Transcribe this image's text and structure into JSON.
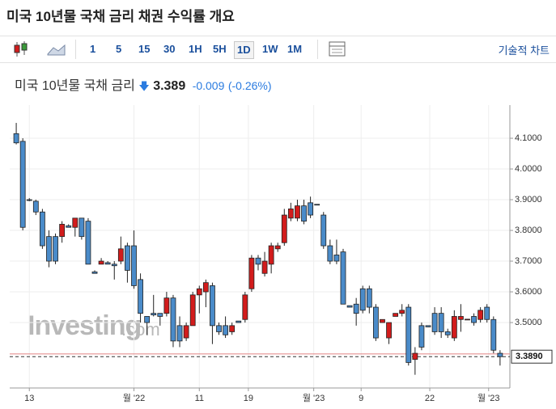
{
  "header": {
    "title": "미국 10년물 국채 금리  채권 수익률 개요"
  },
  "toolbar": {
    "intervals": [
      "1",
      "5",
      "15",
      "30",
      "1H",
      "5H",
      "1D",
      "1W",
      "1M"
    ],
    "selected": "1D",
    "technical": "기술적 차트"
  },
  "quote": {
    "name": "미국 10년물 국채 금리",
    "price": "3.389",
    "change": "-0.009",
    "change_pct": "(-0.26%)"
  },
  "chart_data": {
    "type": "candlestick",
    "up_color": "#d21c1c",
    "down_color": "#4a8bc9",
    "outline": "#222222",
    "watermark": [
      "Investing",
      ".com"
    ],
    "series": [
      {
        "open": [
          4.115,
          4.09,
          3.9,
          3.895,
          3.86,
          3.78,
          3.78,
          3.78,
          3.815,
          3.81,
          3.84,
          3.83,
          3.665,
          3.69,
          3.695,
          3.69,
          3.7,
          3.75,
          3.75,
          3.64,
          3.52,
          3.53,
          3.53,
          3.53,
          3.58,
          3.49,
          3.45,
          3.49,
          3.59,
          3.6,
          3.62,
          3.49,
          3.49,
          3.47,
          3.505,
          3.51,
          3.61,
          3.71,
          3.66,
          3.69,
          3.74,
          3.76,
          3.84,
          3.84,
          3.88,
          3.89,
          3.885,
          3.85,
          3.75,
          3.72,
          3.73,
          3.555,
          3.56,
          3.61,
          3.61,
          3.55,
          3.5,
          3.45,
          3.52,
          3.53,
          3.55,
          3.38,
          3.49,
          3.49,
          3.53,
          3.53,
          3.47,
          3.45,
          3.51,
          3.51,
          3.52,
          3.51,
          3.55,
          3.51,
          3.4
        ],
        "high": [
          4.15,
          4.1,
          3.905,
          3.9,
          3.87,
          3.8,
          3.79,
          3.83,
          3.82,
          3.84,
          3.84,
          3.84,
          3.67,
          3.71,
          3.7,
          3.7,
          3.78,
          3.76,
          3.8,
          3.66,
          3.52,
          3.59,
          3.53,
          3.6,
          3.59,
          3.52,
          3.5,
          3.6,
          3.62,
          3.64,
          3.63,
          3.5,
          3.52,
          3.5,
          3.505,
          3.6,
          3.72,
          3.72,
          3.73,
          3.76,
          3.76,
          3.87,
          3.89,
          3.9,
          3.9,
          3.91,
          3.885,
          3.86,
          3.77,
          3.77,
          3.74,
          3.555,
          3.58,
          3.62,
          3.62,
          3.56,
          3.51,
          3.5,
          3.53,
          3.56,
          3.56,
          3.42,
          3.5,
          3.49,
          3.55,
          3.55,
          3.48,
          3.54,
          3.56,
          3.51,
          3.53,
          3.55,
          3.56,
          3.52,
          3.41
        ],
        "low": [
          4.08,
          3.8,
          3.895,
          3.85,
          3.74,
          3.68,
          3.69,
          3.76,
          3.81,
          3.78,
          3.77,
          3.69,
          3.66,
          3.69,
          3.69,
          3.64,
          3.69,
          3.63,
          3.61,
          3.5,
          3.46,
          3.52,
          3.49,
          3.52,
          3.42,
          3.42,
          3.44,
          3.49,
          3.53,
          3.55,
          3.43,
          3.46,
          3.45,
          3.46,
          3.5,
          3.5,
          3.6,
          3.67,
          3.65,
          3.66,
          3.73,
          3.75,
          3.83,
          3.83,
          3.82,
          3.84,
          3.885,
          3.74,
          3.69,
          3.69,
          3.56,
          3.55,
          3.49,
          3.53,
          3.53,
          3.44,
          3.5,
          3.43,
          3.52,
          3.52,
          3.36,
          3.33,
          3.41,
          3.485,
          3.46,
          3.45,
          3.45,
          3.44,
          3.47,
          3.51,
          3.49,
          3.5,
          3.5,
          3.4,
          3.36
        ],
        "close": [
          4.085,
          3.81,
          3.899,
          3.86,
          3.75,
          3.7,
          3.7,
          3.82,
          3.81,
          3.84,
          3.78,
          3.69,
          3.66,
          3.7,
          3.69,
          3.685,
          3.74,
          3.67,
          3.62,
          3.53,
          3.5,
          3.525,
          3.52,
          3.58,
          3.44,
          3.44,
          3.49,
          3.59,
          3.61,
          3.63,
          3.49,
          3.47,
          3.46,
          3.49,
          3.5,
          3.59,
          3.71,
          3.69,
          3.7,
          3.75,
          3.75,
          3.85,
          3.87,
          3.88,
          3.83,
          3.85,
          3.884,
          3.75,
          3.7,
          3.7,
          3.56,
          3.55,
          3.53,
          3.54,
          3.55,
          3.45,
          3.51,
          3.5,
          3.53,
          3.54,
          3.37,
          3.4,
          3.42,
          3.486,
          3.47,
          3.47,
          3.46,
          3.52,
          3.52,
          3.511,
          3.5,
          3.54,
          3.51,
          3.41,
          3.389
        ]
      }
    ],
    "last_price": {
      "value": 3.389,
      "label": "3.3890"
    },
    "previous_close": 3.398,
    "xlim": [
      -1,
      75.5
    ],
    "xticks": [
      {
        "value": 2,
        "label": "13"
      },
      {
        "value": 18,
        "label": "월 '22"
      },
      {
        "value": 28,
        "label": "11"
      },
      {
        "value": 35.5,
        "label": "19"
      },
      {
        "value": 45.5,
        "label": "월 '23"
      },
      {
        "value": 52.75,
        "label": "9"
      },
      {
        "value": 63.25,
        "label": "22"
      },
      {
        "value": 72.25,
        "label": "월 '23"
      }
    ],
    "ylim": [
      3.287,
      4.208
    ],
    "yticks": [
      {
        "value": 3.5,
        "label": "3.5000"
      },
      {
        "value": 3.6,
        "label": "3.6000"
      },
      {
        "value": 3.7,
        "label": "3.7000"
      },
      {
        "value": 3.8,
        "label": "3.8000"
      },
      {
        "value": 3.9,
        "label": "3.9000"
      },
      {
        "value": 4.0,
        "label": "4.0000"
      },
      {
        "value": 4.1,
        "label": "4.1000"
      }
    ],
    "grid": true
  }
}
